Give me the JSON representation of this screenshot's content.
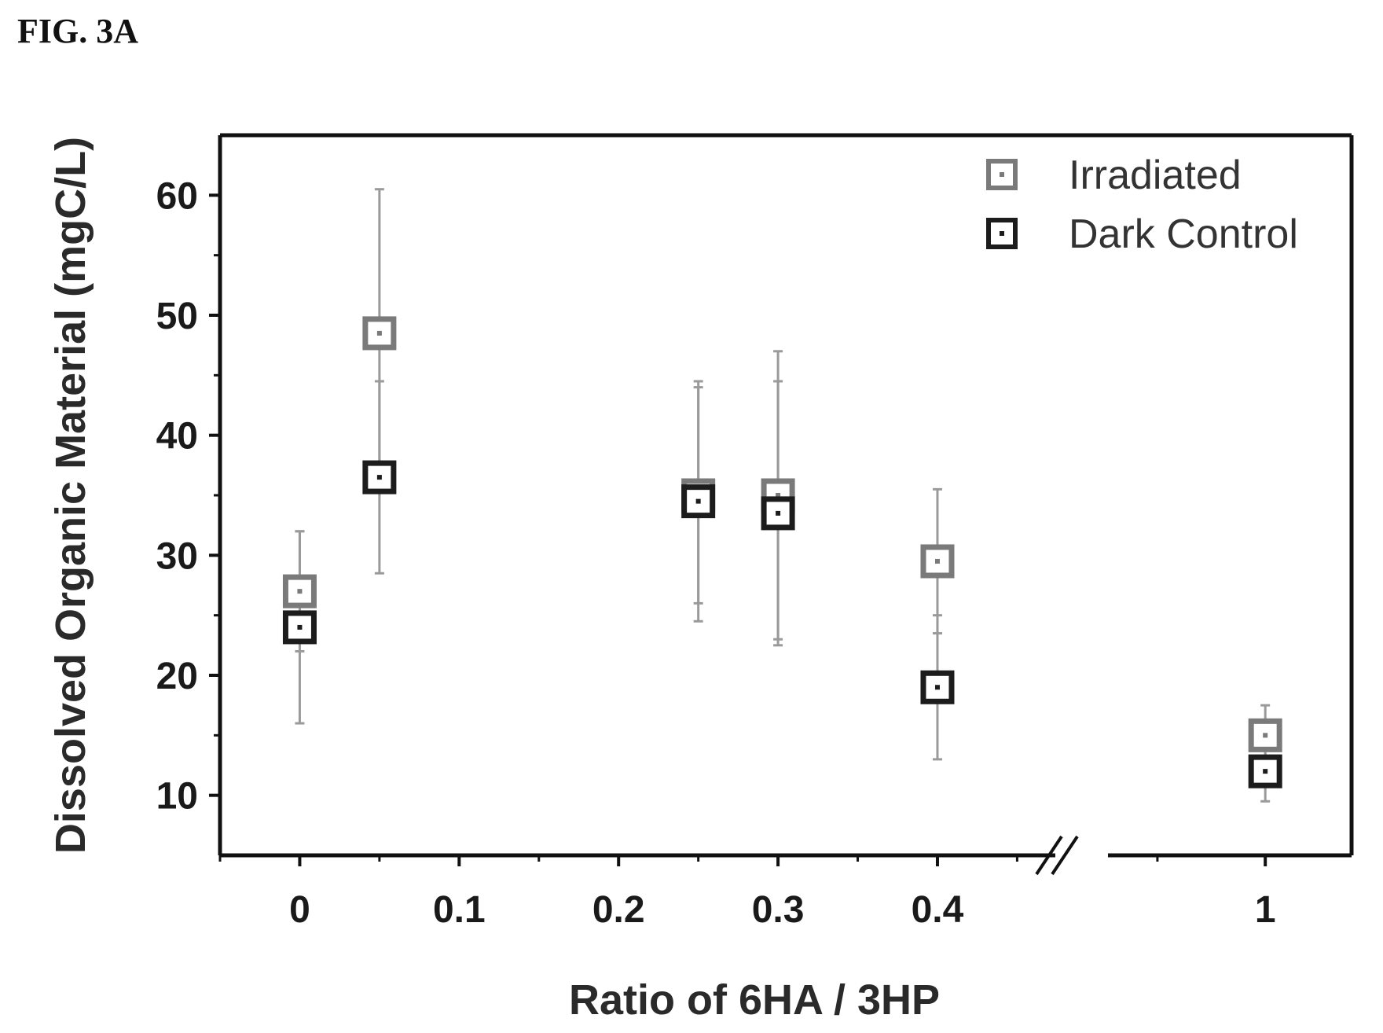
{
  "figure_label": "FIG. 3A",
  "chart_data": {
    "type": "scatter",
    "title": "",
    "xlabel": "Ratio of 6HA / 3HP",
    "ylabel": "Dissolved Organic Material (mgC/L)",
    "xlim": [
      -0.05,
      1.04
    ],
    "ylim": [
      5,
      65
    ],
    "x_axis_break": [
      0.47,
      0.93
    ],
    "x_ticks": [
      0,
      0.1,
      0.2,
      0.3,
      0.4,
      1
    ],
    "x_tick_labels": [
      "0",
      "0.1",
      "0.2",
      "0.3",
      "0.4",
      "1"
    ],
    "y_ticks": [
      10,
      20,
      30,
      40,
      50,
      60
    ],
    "y_tick_labels": [
      "10",
      "20",
      "30",
      "40",
      "50",
      "60"
    ],
    "legend_position": "top-right",
    "grid": false,
    "series": [
      {
        "name": "Irradiated",
        "color": "#7a7a7a",
        "marker": "square-dot",
        "points": [
          {
            "x": 0,
            "y": 27,
            "err": 5
          },
          {
            "x": 0.05,
            "y": 48.5,
            "err": 12
          },
          {
            "x": 0.25,
            "y": 35,
            "err": 9
          },
          {
            "x": 0.3,
            "y": 35,
            "err": 12
          },
          {
            "x": 0.4,
            "y": 29.5,
            "err": 6
          },
          {
            "x": 1,
            "y": 15,
            "err": 2.5
          }
        ]
      },
      {
        "name": "Dark Control",
        "color": "#1c1c1c",
        "marker": "square-dot",
        "points": [
          {
            "x": 0,
            "y": 24,
            "err": 8
          },
          {
            "x": 0.05,
            "y": 36.5,
            "err": 8
          },
          {
            "x": 0.25,
            "y": 34.5,
            "err": 10
          },
          {
            "x": 0.3,
            "y": 33.5,
            "err": 11
          },
          {
            "x": 0.4,
            "y": 19,
            "err": 6
          },
          {
            "x": 1,
            "y": 12,
            "err": 2.5
          }
        ]
      }
    ]
  }
}
